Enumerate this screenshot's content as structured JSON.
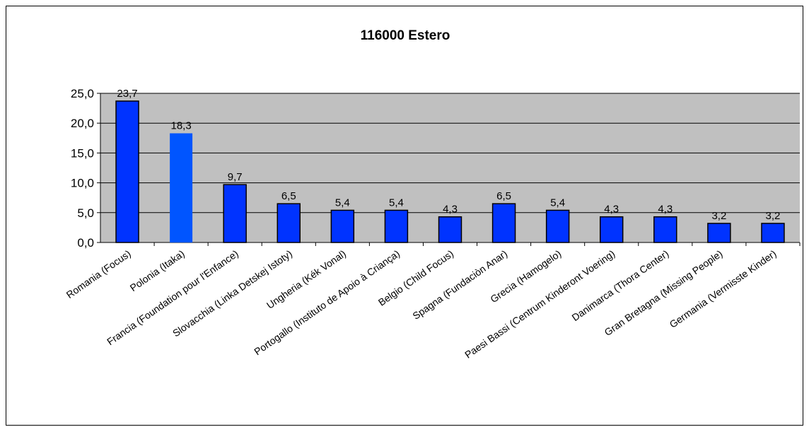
{
  "chart_data": {
    "type": "bar",
    "title": "116000 Estero",
    "xlabel": "",
    "ylabel": "",
    "ylim": [
      0,
      25
    ],
    "yticks": [
      "0,0",
      "5,0",
      "10,0",
      "15,0",
      "20,0",
      "25,0"
    ],
    "grid": true,
    "legend": "none",
    "categories": [
      "Romania (Focus)",
      "Polonia (Itaka)",
      "Francia (Foundation pour l'Enfance)",
      "Slovacchia (Linka Detskej Istoty)",
      "Ungheria (Kék Vonal)",
      "Portogallo (Instituto de Apoio à Criança)",
      "Belgio (Child Focus)",
      "Spagna (Fundaciòn Anar)",
      "Grecia (Hamogelo)",
      "Paesi Bassi (Centrum Kinderont Voering)",
      "Danimarca (Thora Center)",
      "Gran Bretagna (Missing People)",
      "Germania (Vermisste Kinder)"
    ],
    "values": [
      23.7,
      18.3,
      9.7,
      6.5,
      5.4,
      5.4,
      4.3,
      6.5,
      5.4,
      4.3,
      4.3,
      3.2,
      3.2
    ],
    "value_labels": [
      "23,7",
      "18,3",
      "9,7",
      "6,5",
      "5,4",
      "5,4",
      "4,3",
      "6,5",
      "5,4",
      "4,3",
      "4,3",
      "3,2",
      "3,2"
    ],
    "colors": {
      "bar": "#0033ff",
      "bar_highlight": "#0055ff",
      "plot_bg": "#c0c0c0",
      "grid": "#000000"
    },
    "highlight_index": 1
  }
}
